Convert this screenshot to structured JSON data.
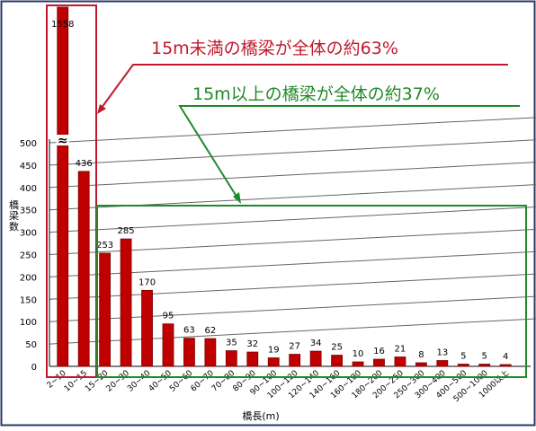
{
  "chart_data": {
    "type": "bar",
    "title": "",
    "xlabel": "橋長(m)",
    "ylabel": "橋梁数",
    "ylim": [
      0,
      500
    ],
    "yticks": [
      0,
      50,
      100,
      150,
      200,
      250,
      300,
      350,
      400,
      450,
      500
    ],
    "axis_break_symbol": "≈",
    "grid": true,
    "categories": [
      "2~10",
      "10~15",
      "15~20",
      "20~30",
      "30~40",
      "40~50",
      "50~60",
      "60~70",
      "70~80",
      "80~90",
      "90~100",
      "100~120",
      "120~140",
      "140~160",
      "160~180",
      "180~200",
      "200~250",
      "250~300",
      "300~400",
      "400~500",
      "500~1000",
      "1000以上"
    ],
    "values": [
      1558,
      436,
      253,
      285,
      170,
      95,
      63,
      62,
      35,
      32,
      19,
      27,
      34,
      25,
      10,
      16,
      21,
      8,
      13,
      5,
      5,
      4
    ],
    "data_labels": [
      "1558",
      "436",
      "253",
      "285",
      "170",
      "95",
      "63",
      "62",
      "35",
      "32",
      "19",
      "27",
      "34",
      "25",
      "10",
      "16",
      "21",
      "8",
      "13",
      "5",
      "5",
      "4"
    ]
  },
  "annotations": {
    "under15": {
      "text": "15m未満の橋梁が全体の約63%",
      "color": "#c0192b"
    },
    "over15": {
      "text": "15m以上の橋梁が全体の約37%",
      "color": "#1f8a2a"
    }
  },
  "colors": {
    "bar": "#c00000",
    "bar_edge": "#7a0000",
    "grid": "#666666",
    "axis": "#000000",
    "frame": "#2b3a66"
  }
}
